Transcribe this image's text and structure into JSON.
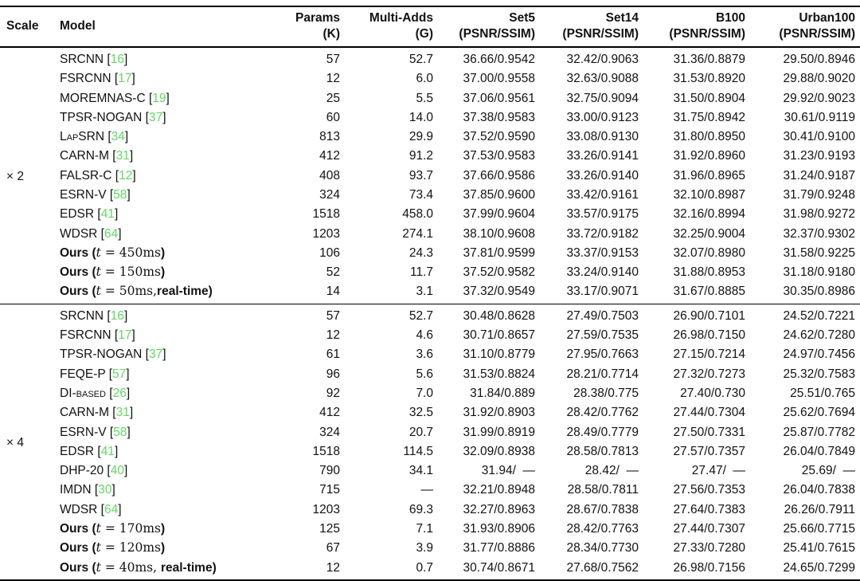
{
  "table": {
    "headers": {
      "scale": "Scale",
      "model": "Model",
      "cols": [
        {
          "line1": "Params",
          "line2": "(K)"
        },
        {
          "line1": "Multi-Adds",
          "line2": "(G)"
        },
        {
          "line1": "Set5",
          "line2": "(PSNR/SSIM)"
        },
        {
          "line1": "Set14",
          "line2": "(PSNR/SSIM)"
        },
        {
          "line1": "B100",
          "line2": "(PSNR/SSIM)"
        },
        {
          "line1": "Urban100",
          "line2": "(PSNR/SSIM)"
        }
      ]
    },
    "colors": {
      "citation_green": "#62d962",
      "text": "#111111",
      "rule": "#000000"
    },
    "sections": [
      {
        "scale": "× 2",
        "rows": [
          {
            "model": [
              {
                "t": "SRCNN [",
                "s": "n"
              },
              {
                "t": "16",
                "s": "ref"
              },
              {
                "t": "]",
                "s": "n"
              }
            ],
            "values": [
              "57",
              "52.7",
              "36.66/0.9542",
              "32.42/0.9063",
              "31.36/0.8879",
              "29.50/0.8946"
            ]
          },
          {
            "model": [
              {
                "t": "FSRCNN [",
                "s": "n"
              },
              {
                "t": "17",
                "s": "ref"
              },
              {
                "t": "]",
                "s": "n"
              }
            ],
            "values": [
              "12",
              "6.0",
              "37.00/0.9558",
              "32.63/0.9088",
              "31.53/0.8920",
              "29.88/0.9020"
            ]
          },
          {
            "model": [
              {
                "t": "MOREMNAS-C [",
                "s": "n"
              },
              {
                "t": "19",
                "s": "ref"
              },
              {
                "t": "]",
                "s": "n"
              }
            ],
            "values": [
              "25",
              "5.5",
              "37.06/0.9561",
              "32.75/0.9094",
              "31.50/0.8904",
              "29.92/0.9023"
            ]
          },
          {
            "model": [
              {
                "t": "TPSR-NOGAN [",
                "s": "n"
              },
              {
                "t": "37",
                "s": "ref"
              },
              {
                "t": "]",
                "s": "n"
              }
            ],
            "values": [
              "60",
              "14.0",
              "37.38/0.9583",
              "33.00/0.9123",
              "31.75/0.8942",
              "30.61/0.9119"
            ]
          },
          {
            "model": [
              {
                "t": "LapSRN",
                "s": "sc"
              },
              {
                "t": " [",
                "s": "n"
              },
              {
                "t": "34",
                "s": "ref"
              },
              {
                "t": "]",
                "s": "n"
              }
            ],
            "values": [
              "813",
              "29.9",
              "37.52/0.9590",
              "33.08/0.9130",
              "31.80/0.8950",
              "30.41/0.9100"
            ]
          },
          {
            "model": [
              {
                "t": "CARN-M [",
                "s": "n"
              },
              {
                "t": "31",
                "s": "ref"
              },
              {
                "t": "]",
                "s": "n"
              }
            ],
            "values": [
              "412",
              "91.2",
              "37.53/0.9583",
              "33.26/0.9141",
              "31.92/0.8960",
              "31.23/0.9193"
            ]
          },
          {
            "model": [
              {
                "t": "FALSR-C [",
                "s": "n"
              },
              {
                "t": "12",
                "s": "ref"
              },
              {
                "t": "]",
                "s": "n"
              }
            ],
            "values": [
              "408",
              "93.7",
              "37.66/0.9586",
              "33.26/0.9140",
              "31.96/0.8965",
              "31.24/0.9187"
            ]
          },
          {
            "model": [
              {
                "t": "ESRN-V [",
                "s": "n"
              },
              {
                "t": "58",
                "s": "ref"
              },
              {
                "t": "]",
                "s": "n"
              }
            ],
            "values": [
              "324",
              "73.4",
              "37.85/0.9600",
              "33.42/0.9161",
              "32.10/0.8987",
              "31.79/0.9248"
            ]
          },
          {
            "model": [
              {
                "t": "EDSR [",
                "s": "n"
              },
              {
                "t": "41",
                "s": "ref"
              },
              {
                "t": "]",
                "s": "n"
              }
            ],
            "values": [
              "1518",
              "458.0",
              "37.99/0.9604",
              "33.57/0.9175",
              "32.16/0.8994",
              "31.98/0.9272"
            ]
          },
          {
            "model": [
              {
                "t": "WDSR [",
                "s": "n"
              },
              {
                "t": "64",
                "s": "ref"
              },
              {
                "t": "]",
                "s": "n"
              }
            ],
            "values": [
              "1203",
              "274.1",
              "38.10/0.9608",
              "33.72/0.9182",
              "32.25/0.9004",
              "32.37/0.9302"
            ]
          },
          {
            "model": [
              {
                "t": "Ours (",
                "s": "b"
              },
              {
                "t": "t",
                "s": "i"
              },
              {
                "t": " = 450ms",
                "s": "r"
              },
              {
                "t": ")",
                "s": "b"
              }
            ],
            "values": [
              "106",
              "24.3",
              "37.81/0.9599",
              "33.37/0.9153",
              "32.07/0.8980",
              "31.58/0.9225"
            ]
          },
          {
            "model": [
              {
                "t": "Ours (",
                "s": "b"
              },
              {
                "t": "t",
                "s": "i"
              },
              {
                "t": " = 150ms",
                "s": "r"
              },
              {
                "t": ")",
                "s": "b"
              }
            ],
            "values": [
              "52",
              "11.7",
              "37.52/0.9582",
              "33.24/0.9140",
              "31.88/0.8953",
              "31.18/0.9180"
            ]
          },
          {
            "model": [
              {
                "t": "Ours (",
                "s": "b"
              },
              {
                "t": "t",
                "s": "i"
              },
              {
                "t": " = 50ms,",
                "s": "r"
              },
              {
                "t": "real-time)",
                "s": "b"
              }
            ],
            "values": [
              "14",
              "3.1",
              "37.32/0.9549",
              "33.17/0.9071",
              "31.67/0.8885",
              "30.35/0.8986"
            ]
          }
        ]
      },
      {
        "scale": "× 4",
        "rows": [
          {
            "model": [
              {
                "t": "SRCNN [",
                "s": "n"
              },
              {
                "t": "16",
                "s": "ref"
              },
              {
                "t": "]",
                "s": "n"
              }
            ],
            "values": [
              "57",
              "52.7",
              "30.48/0.8628",
              "27.49/0.7503",
              "26.90/0.7101",
              "24.52/0.7221"
            ]
          },
          {
            "model": [
              {
                "t": "FSRCNN [",
                "s": "n"
              },
              {
                "t": "17",
                "s": "ref"
              },
              {
                "t": "]",
                "s": "n"
              }
            ],
            "values": [
              "12",
              "4.6",
              "30.71/0.8657",
              "27.59/0.7535",
              "26.98/0.7150",
              "24.62/0.7280"
            ]
          },
          {
            "model": [
              {
                "t": "TPSR-NOGAN [",
                "s": "n"
              },
              {
                "t": "37",
                "s": "ref"
              },
              {
                "t": "]",
                "s": "n"
              }
            ],
            "values": [
              "61",
              "3.6",
              "31.10/0.8779",
              "27.95/0.7663",
              "27.15/0.7214",
              "24.97/0.7456"
            ]
          },
          {
            "model": [
              {
                "t": "FEQE-P [",
                "s": "n"
              },
              {
                "t": "57",
                "s": "ref"
              },
              {
                "t": "]",
                "s": "n"
              }
            ],
            "values": [
              "96",
              "5.6",
              "31.53/0.8824",
              "28.21/0.7714",
              "27.32/0.7273",
              "25.32/0.7583"
            ]
          },
          {
            "model": [
              {
                "t": "DI-based",
                "s": "sc"
              },
              {
                "t": " [",
                "s": "n"
              },
              {
                "t": "26",
                "s": "ref"
              },
              {
                "t": "]",
                "s": "n"
              }
            ],
            "values": [
              "92",
              "7.0",
              "31.84/0.889",
              "28.38/0.775",
              "27.40/0.730",
              "25.51/0.765"
            ]
          },
          {
            "model": [
              {
                "t": "CARN-M [",
                "s": "n"
              },
              {
                "t": "31",
                "s": "ref"
              },
              {
                "t": "]",
                "s": "n"
              }
            ],
            "values": [
              "412",
              "32.5",
              "31.92/0.8903",
              "28.42/0.7762",
              "27.44/0.7304",
              "25.62/0.7694"
            ]
          },
          {
            "model": [
              {
                "t": "ESRN-V [",
                "s": "n"
              },
              {
                "t": "58",
                "s": "ref"
              },
              {
                "t": "]",
                "s": "n"
              }
            ],
            "values": [
              "324",
              "20.7",
              "31.99/0.8919",
              "28.49/0.7779",
              "27.50/0.7331",
              "25.87/0.7782"
            ]
          },
          {
            "model": [
              {
                "t": "EDSR [",
                "s": "n"
              },
              {
                "t": "41",
                "s": "ref"
              },
              {
                "t": "]",
                "s": "n"
              }
            ],
            "values": [
              "1518",
              "114.5",
              "32.09/0.8938",
              "28.58/0.7813",
              "27.57/0.7357",
              "26.04/0.7849"
            ]
          },
          {
            "model": [
              {
                "t": "DHP-20 [",
                "s": "n"
              },
              {
                "t": "40",
                "s": "ref"
              },
              {
                "t": "]",
                "s": "n"
              }
            ],
            "values": [
              "790",
              "34.1",
              "31.94/  —",
              "28.42/  —",
              "27.47/  —",
              "25.69/  —"
            ]
          },
          {
            "model": [
              {
                "t": "IMDN [",
                "s": "n"
              },
              {
                "t": "30",
                "s": "ref"
              },
              {
                "t": "]",
                "s": "n"
              }
            ],
            "values": [
              "715",
              "—",
              "32.21/0.8948",
              "28.58/0.7811",
              "27.56/0.7353",
              "26.04/0.7838"
            ]
          },
          {
            "model": [
              {
                "t": "WDSR [",
                "s": "n"
              },
              {
                "t": "64",
                "s": "ref"
              },
              {
                "t": "]",
                "s": "n"
              }
            ],
            "values": [
              "1203",
              "69.3",
              "32.27/0.8963",
              "28.67/0.7838",
              "27.64/0.7383",
              "26.26/0.7911"
            ]
          },
          {
            "model": [
              {
                "t": "Ours (",
                "s": "b"
              },
              {
                "t": "t",
                "s": "i"
              },
              {
                "t": " = 170ms",
                "s": "r"
              },
              {
                "t": ")",
                "s": "b"
              }
            ],
            "values": [
              "125",
              "7.1",
              "31.93/0.8906",
              "28.42/0.7763",
              "27.44/0.7307",
              "25.66/0.7715"
            ]
          },
          {
            "model": [
              {
                "t": "Ours (",
                "s": "b"
              },
              {
                "t": "t",
                "s": "i"
              },
              {
                "t": " = 120ms",
                "s": "r"
              },
              {
                "t": ")",
                "s": "b"
              }
            ],
            "values": [
              "67",
              "3.9",
              "31.77/0.8886",
              "28.34/0.7730",
              "27.33/0.7280",
              "25.41/0.7615"
            ]
          },
          {
            "model": [
              {
                "t": "Ours (",
                "s": "b"
              },
              {
                "t": "t",
                "s": "i"
              },
              {
                "t": " = 40ms, ",
                "s": "r"
              },
              {
                "t": "real-time)",
                "s": "b"
              }
            ],
            "values": [
              "12",
              "0.7",
              "30.74/0.8671",
              "27.68/0.7562",
              "26.98/0.7156",
              "24.65/0.7299"
            ]
          }
        ]
      }
    ]
  }
}
